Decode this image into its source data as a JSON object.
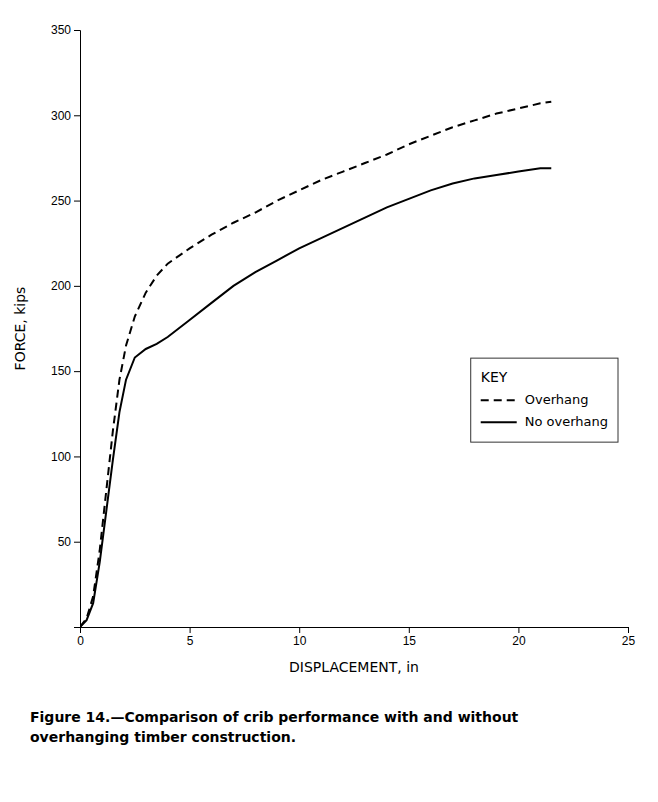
{
  "chart_data": {
    "type": "line",
    "xlabel": "DISPLACEMENT, in",
    "ylabel": "FORCE, kips",
    "x": [
      0,
      0.3,
      0.6,
      0.9,
      1.2,
      1.5,
      1.8,
      2.1,
      2.5,
      3.0,
      3.5,
      4.0,
      5.0,
      6.0,
      7.0,
      8.0,
      9.0,
      10.0,
      11.0,
      12.0,
      13.0,
      14.0,
      15.0,
      16.0,
      17.0,
      18.0,
      19.0,
      20.0,
      21.0,
      21.5
    ],
    "series": [
      {
        "name": "Overhang",
        "color": "#000000",
        "line_style": "dashed",
        "values": [
          0,
          5,
          18,
          45,
          80,
          115,
          145,
          165,
          182,
          196,
          206,
          213,
          222,
          230,
          237,
          243,
          250,
          256,
          262,
          267,
          272,
          277,
          283,
          288,
          293,
          297,
          301,
          304,
          307,
          308
        ]
      },
      {
        "name": "No overhang",
        "color": "#000000",
        "line_style": "solid",
        "values": [
          0,
          4,
          14,
          38,
          68,
          98,
          126,
          145,
          158,
          163,
          166,
          170,
          180,
          190,
          200,
          208,
          215,
          222,
          228,
          234,
          240,
          246,
          251,
          256,
          260,
          263,
          265,
          267,
          269,
          269
        ]
      }
    ],
    "xlim": [
      0,
      25
    ],
    "ylim": [
      0,
      350
    ],
    "xticks": [
      0,
      5,
      10,
      15,
      20,
      25
    ],
    "yticks": [
      50,
      100,
      150,
      200,
      250,
      300,
      350
    ],
    "grid": false,
    "legend": "right",
    "legend_title": "KEY",
    "annotations": [
      "Figure 14.—Comparison of crib performance with and without",
      "overhanging timber construction."
    ]
  }
}
